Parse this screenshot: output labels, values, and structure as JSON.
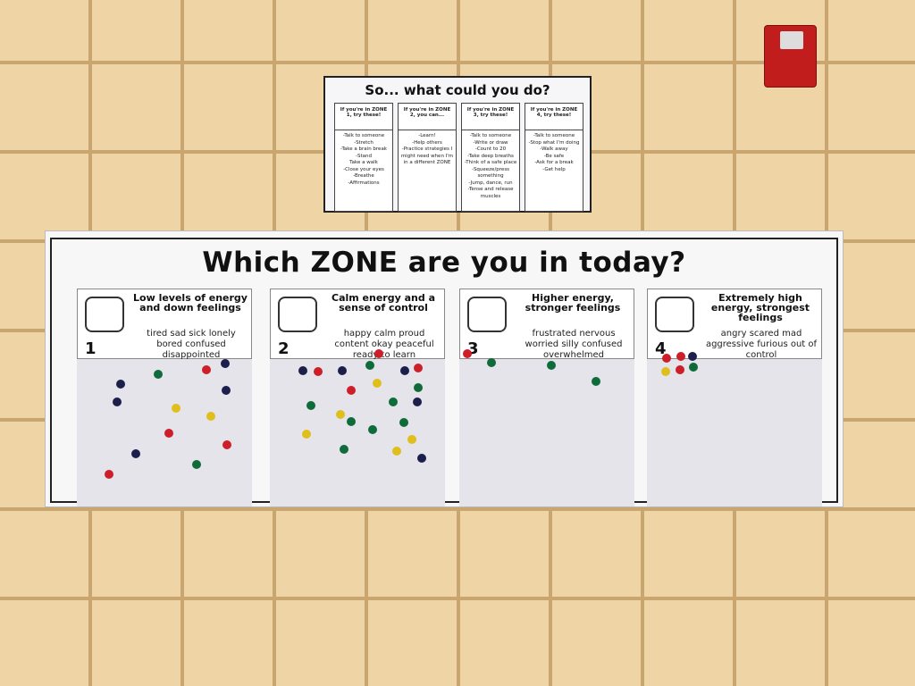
{
  "small_poster": {
    "title": "So... what could you do?",
    "columns": [
      {
        "header": "If you're in ZONE 1, try these!",
        "items": [
          "-Talk to someone",
          "-Stretch",
          "-Take a brain break",
          "-Stand",
          "Take a walk",
          "-Close your eyes",
          "-Breathe",
          "-Affirmations"
        ]
      },
      {
        "header": "If you're in ZONE 2, you can...",
        "items": [
          "-Learn!",
          "-Help others",
          "-Practice strategies I might need when I'm in a different ZONE"
        ]
      },
      {
        "header": "If you're in ZONE 3, try these!",
        "items": [
          "-Talk to someone",
          "-Write or draw",
          "-Count to 20",
          "-Take deep breaths",
          "-Think of a safe place",
          "-Squeeze/press something",
          "-Jump, dance, run",
          "-Tense and release muscles"
        ]
      },
      {
        "header": "If you're in ZONE 4, try these!",
        "items": [
          "-Talk to someone",
          "-Stop what I'm doing",
          "-Walk away",
          "-Be safe",
          "-Ask for a break",
          "-Get help"
        ]
      }
    ]
  },
  "main_poster": {
    "title": "Which ZONE are you in today?",
    "zones": [
      {
        "number": "1",
        "title": "Low levels of energy and down feelings",
        "feelings": "tired sad sick lonely bored confused disappointed"
      },
      {
        "number": "2",
        "title": "Calm energy and a sense of control",
        "feelings": "happy calm proud content okay peaceful ready to learn"
      },
      {
        "number": "3",
        "title": "Higher energy, stronger feelings",
        "feelings": "frustrated nervous worried silly confused overwhelmed"
      },
      {
        "number": "4",
        "title": "Extremely high energy, strongest feelings",
        "feelings": "angry scared mad aggressive furious out of control"
      }
    ]
  }
}
